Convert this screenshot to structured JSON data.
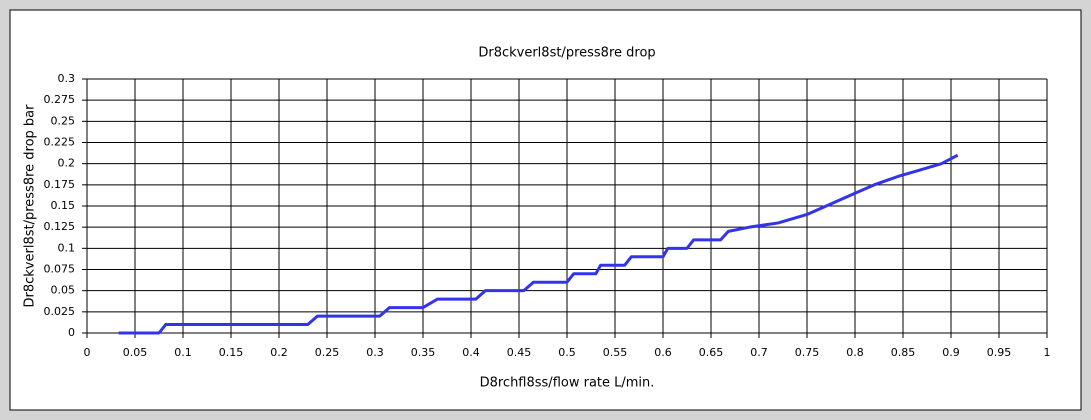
{
  "chart_data": {
    "type": "line",
    "title": "Dr8ckverl8st/press8re drop",
    "x_label": "D8rchfl8ss/flow rate L/min.",
    "y_label": "Dr8ckverl8st/press8re drop bar",
    "xlim": [
      0,
      1
    ],
    "xticks": [
      0,
      0.05,
      0.1,
      0.15,
      0.2,
      0.25,
      0.3,
      0.35,
      0.4,
      0.45,
      0.5,
      0.55,
      0.6,
      0.65,
      0.7,
      0.75,
      0.8,
      0.85,
      0.9,
      0.95,
      1
    ],
    "ylim": [
      0,
      0.3
    ],
    "yticks": [
      0,
      0.025,
      0.05,
      0.075,
      0.1,
      0.125,
      0.15,
      0.175,
      0.2,
      0.225,
      0.25,
      0.275,
      0.3
    ],
    "grid": true,
    "series": [
      {
        "color": "#3333ee",
        "x": [
          0.033,
          0.075,
          0.082,
          0.23,
          0.24,
          0.305,
          0.315,
          0.35,
          0.365,
          0.405,
          0.415,
          0.455,
          0.465,
          0.5,
          0.507,
          0.53,
          0.535,
          0.56,
          0.567,
          0.6,
          0.605,
          0.625,
          0.632,
          0.66,
          0.668,
          0.69,
          0.72,
          0.75,
          0.77,
          0.8,
          0.82,
          0.845,
          0.86,
          0.89,
          0.907
        ],
        "values": [
          0,
          0,
          0.01,
          0.01,
          0.02,
          0.02,
          0.03,
          0.03,
          0.04,
          0.04,
          0.05,
          0.05,
          0.06,
          0.06,
          0.07,
          0.07,
          0.08,
          0.08,
          0.09,
          0.09,
          0.1,
          0.1,
          0.11,
          0.11,
          0.12,
          0.125,
          0.13,
          0.14,
          0.15,
          0.165,
          0.175,
          0.185,
          0.19,
          0.2,
          0.21
        ]
      }
    ]
  }
}
